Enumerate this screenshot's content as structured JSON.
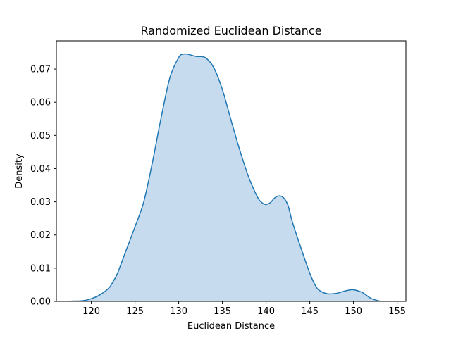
{
  "chart_data": {
    "type": "area",
    "title": "Randomized Euclidean Distance",
    "xlabel": "Euclidean Distance",
    "ylabel": "Density",
    "xlim": [
      116,
      156
    ],
    "ylim": [
      0,
      0.0785
    ],
    "xticks": [
      120,
      125,
      130,
      135,
      140,
      145,
      150,
      155
    ],
    "xtick_labels": [
      "120",
      "125",
      "130",
      "135",
      "140",
      "145",
      "150",
      "155"
    ],
    "yticks": [
      0,
      0.01,
      0.02,
      0.03,
      0.04,
      0.05,
      0.06,
      0.07
    ],
    "ytick_labels": [
      "0.00",
      "0.01",
      "0.02",
      "0.03",
      "0.04",
      "0.05",
      "0.06",
      "0.07"
    ],
    "grid": false,
    "line_color": "#1f77b4",
    "fill_color": "#c6dbed",
    "series": [
      {
        "x": [
          117.5,
          118,
          119,
          120,
          121,
          122,
          122.5,
          123,
          124,
          125,
          126,
          127,
          128,
          129,
          130,
          130.5,
          131,
          132,
          133,
          134,
          135,
          136,
          137,
          138,
          139,
          139.5,
          140,
          140.5,
          141,
          141.5,
          142,
          142.5,
          143,
          144,
          145,
          145.5,
          146,
          147,
          148,
          149,
          149.5,
          150,
          151,
          152,
          153
        ],
        "y": [
          0.0,
          0.0001,
          0.0002,
          0.0008,
          0.002,
          0.004,
          0.006,
          0.0085,
          0.0155,
          0.0225,
          0.03,
          0.042,
          0.0555,
          0.0675,
          0.0735,
          0.0745,
          0.0745,
          0.0738,
          0.0735,
          0.0705,
          0.0638,
          0.0545,
          0.0455,
          0.0375,
          0.0315,
          0.0298,
          0.0292,
          0.0298,
          0.0312,
          0.0318,
          0.0312,
          0.029,
          0.024,
          0.016,
          0.0085,
          0.0055,
          0.0035,
          0.0023,
          0.0024,
          0.0031,
          0.0034,
          0.0035,
          0.0027,
          0.0009,
          0.0001
        ]
      }
    ]
  }
}
